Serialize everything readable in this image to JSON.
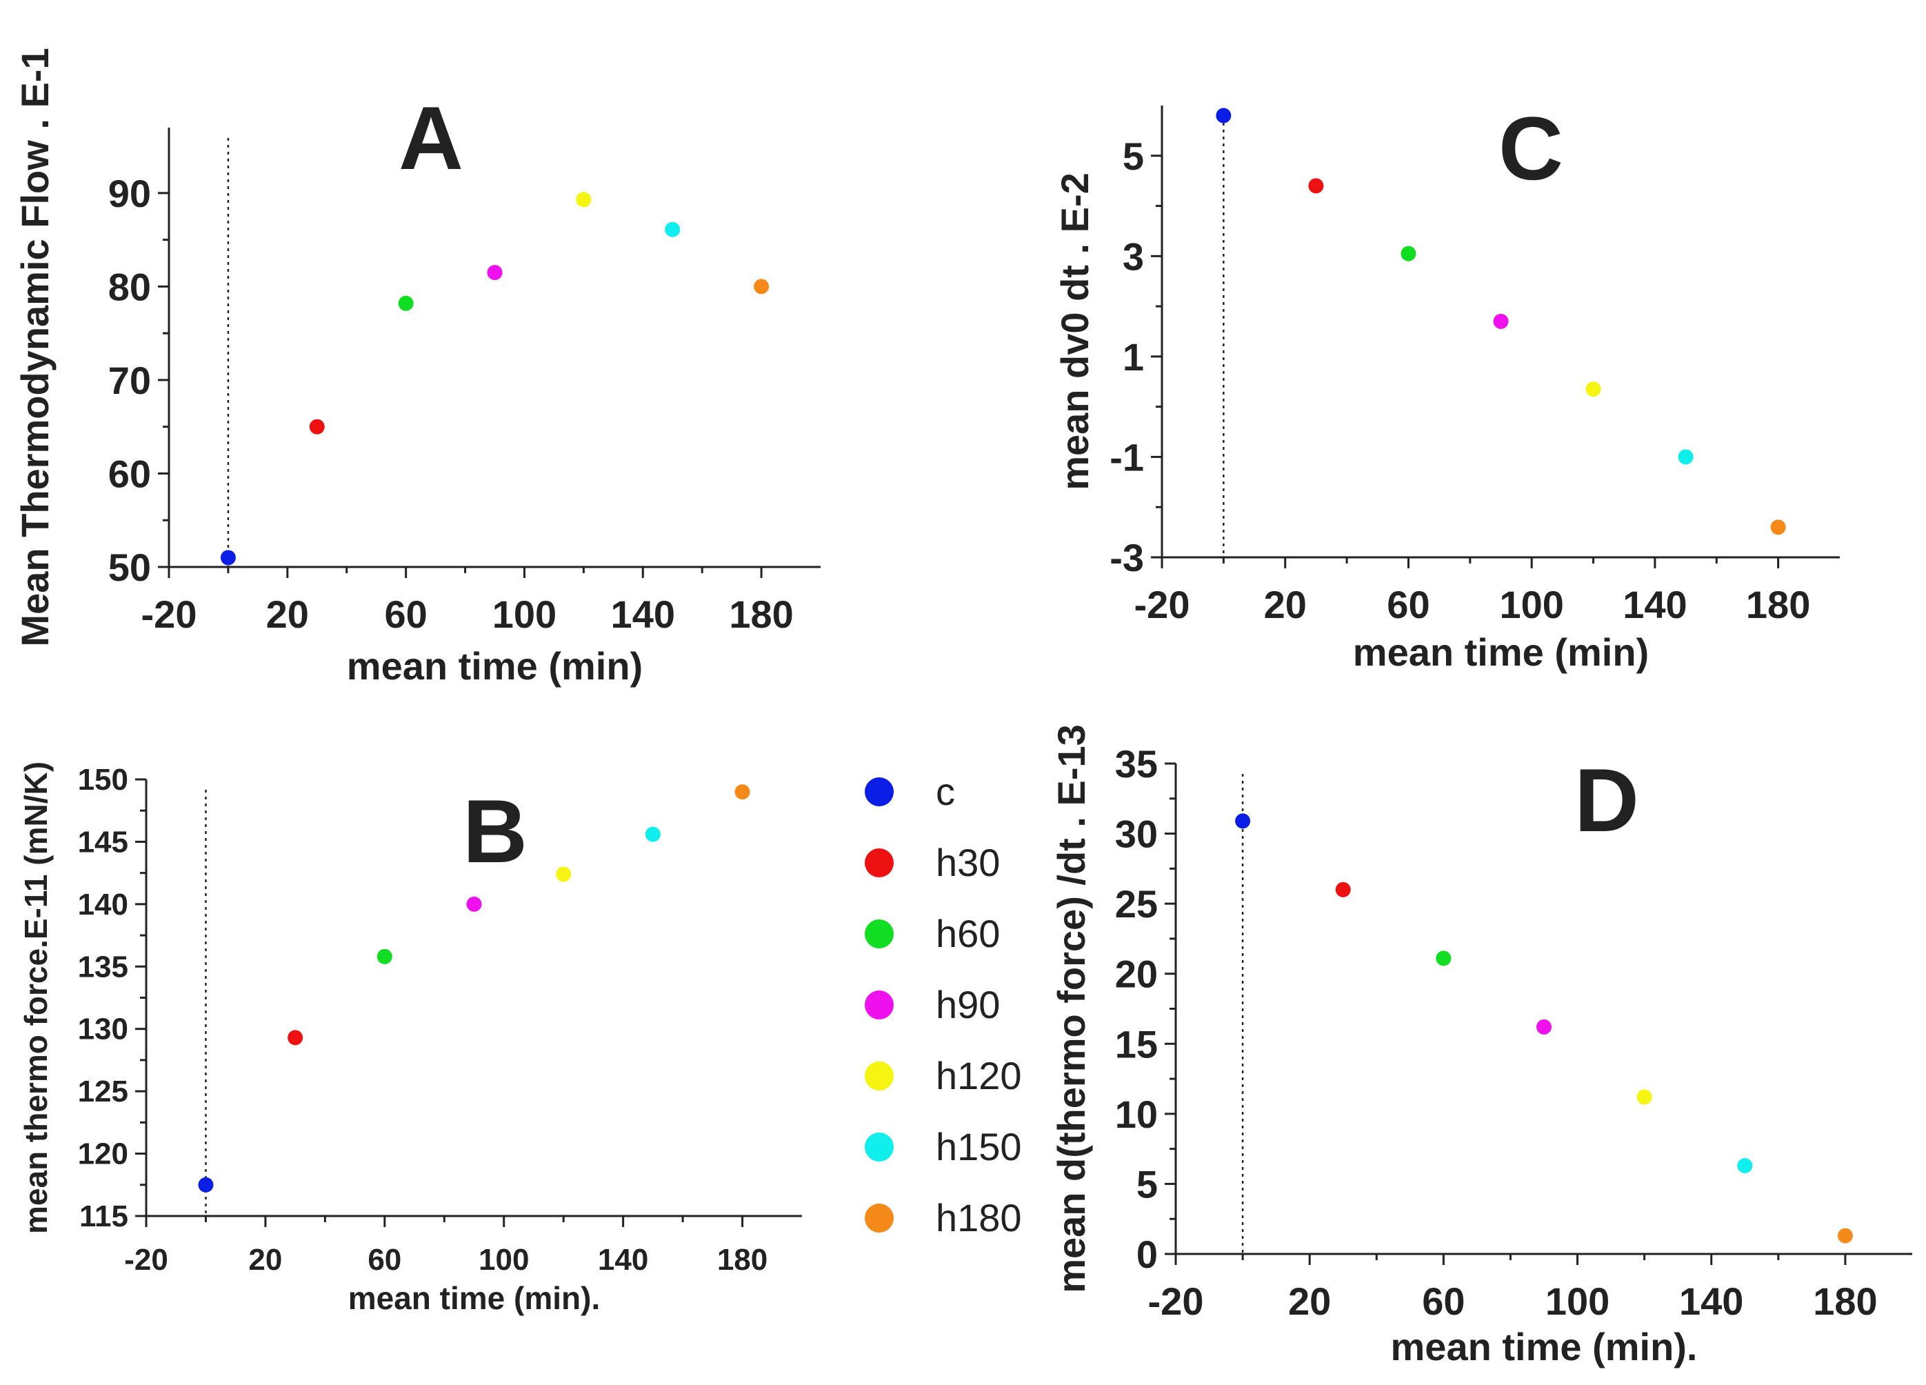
{
  "chart_data": [
    {
      "id": "A",
      "type": "scatter",
      "panel_label": "A",
      "xlabel": "mean time (min)",
      "ylabel": "Mean Thermodynamic Flow . E-1",
      "xlim": [
        -20,
        200
      ],
      "ylim": [
        50,
        97
      ],
      "xticks": [
        -20,
        20,
        60,
        100,
        140,
        180
      ],
      "yticks": [
        50,
        60,
        70,
        80,
        90
      ],
      "reference_x": 0,
      "points": [
        {
          "series": "c",
          "x": 0,
          "y": 51
        },
        {
          "series": "h30",
          "x": 30,
          "y": 65
        },
        {
          "series": "h60",
          "x": 60,
          "y": 78.2
        },
        {
          "series": "h90",
          "x": 90,
          "y": 81.5
        },
        {
          "series": "h120",
          "x": 120,
          "y": 89.3
        },
        {
          "series": "h150",
          "x": 150,
          "y": 86.1
        },
        {
          "series": "h180",
          "x": 180,
          "y": 80
        }
      ]
    },
    {
      "id": "B",
      "type": "scatter",
      "panel_label": "B",
      "xlabel": "mean time  (min).",
      "ylabel": "mean thermo force.E-11 (mN/K)",
      "xlim": [
        -20,
        200
      ],
      "ylim": [
        115,
        150
      ],
      "xticks": [
        -20,
        20,
        60,
        100,
        140,
        180
      ],
      "yticks": [
        115,
        120,
        125,
        130,
        135,
        140,
        145,
        150
      ],
      "reference_x": 0,
      "points": [
        {
          "series": "c",
          "x": 0,
          "y": 117.5
        },
        {
          "series": "h30",
          "x": 30,
          "y": 129.3
        },
        {
          "series": "h60",
          "x": 60,
          "y": 135.8
        },
        {
          "series": "h90",
          "x": 90,
          "y": 140
        },
        {
          "series": "h120",
          "x": 120,
          "y": 142.4
        },
        {
          "series": "h150",
          "x": 150,
          "y": 145.6
        },
        {
          "series": "h180",
          "x": 180,
          "y": 149
        }
      ]
    },
    {
      "id": "C",
      "type": "scatter",
      "panel_label": "C",
      "xlabel": "mean time (min)",
      "ylabel": "mean dv0 dt . E-2",
      "xlim": [
        -20,
        200
      ],
      "ylim": [
        -3,
        6
      ],
      "xticks": [
        -20,
        20,
        60,
        100,
        140,
        180
      ],
      "yticks": [
        -3,
        -1,
        1,
        3,
        5
      ],
      "reference_x": 0,
      "points": [
        {
          "series": "c",
          "x": 0,
          "y": 5.8
        },
        {
          "series": "h30",
          "x": 30,
          "y": 4.4
        },
        {
          "series": "h60",
          "x": 60,
          "y": 3.05
        },
        {
          "series": "h90",
          "x": 90,
          "y": 1.7
        },
        {
          "series": "h120",
          "x": 120,
          "y": 0.35
        },
        {
          "series": "h150",
          "x": 150,
          "y": -1
        },
        {
          "series": "h180",
          "x": 180,
          "y": -2.4
        }
      ]
    },
    {
      "id": "D",
      "type": "scatter",
      "panel_label": "D",
      "xlabel": "mean time  (min).",
      "ylabel": "mean d(thermo force) /dt . E-13",
      "xlim": [
        -20,
        200
      ],
      "ylim": [
        0,
        35
      ],
      "xticks": [
        -20,
        20,
        60,
        100,
        140,
        180
      ],
      "yticks": [
        0,
        5,
        10,
        15,
        20,
        25,
        30,
        35
      ],
      "reference_x": 0,
      "points": [
        {
          "series": "c",
          "x": 0,
          "y": 30.9
        },
        {
          "series": "h30",
          "x": 30,
          "y": 26
        },
        {
          "series": "h60",
          "x": 60,
          "y": 21.1
        },
        {
          "series": "h90",
          "x": 90,
          "y": 16.2
        },
        {
          "series": "h120",
          "x": 120,
          "y": 11.2
        },
        {
          "series": "h150",
          "x": 150,
          "y": 6.3
        },
        {
          "series": "h180",
          "x": 180,
          "y": 1.3
        }
      ]
    }
  ],
  "legend": {
    "position": "center",
    "entries": [
      {
        "label": "c",
        "color": "#0a1ee6"
      },
      {
        "label": "h30",
        "color": "#ee1111"
      },
      {
        "label": "h60",
        "color": "#11dd22"
      },
      {
        "label": "h90",
        "color": "#ee11ee"
      },
      {
        "label": "h120",
        "color": "#f5f511"
      },
      {
        "label": "h150",
        "color": "#11eeee"
      },
      {
        "label": "h180",
        "color": "#f58a1a"
      }
    ]
  }
}
